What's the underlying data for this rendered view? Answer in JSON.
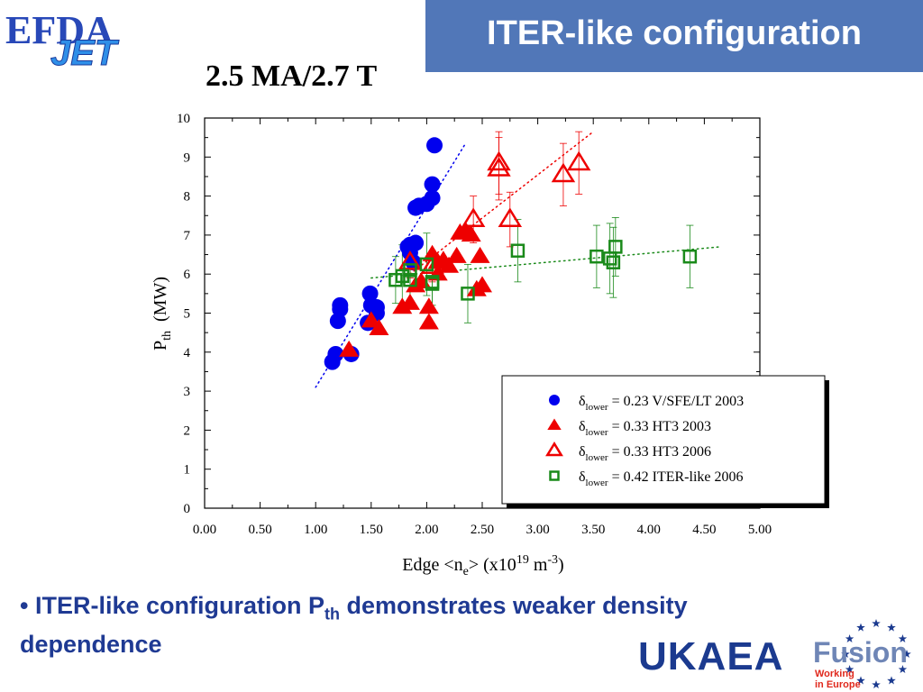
{
  "header": {
    "title": "ITER-like configuration",
    "logo_text_1": "EFDA",
    "logo_text_2": "JET"
  },
  "chart_title": "2.5 MA/2.7 T",
  "bullet": {
    "marker": "•",
    "text_1": "ITER-like configuration P",
    "subscript": "th",
    "text_2": " demonstrates weaker density dependence"
  },
  "footer": {
    "ukaea": "UKAEA",
    "fusion": "Fusion",
    "fusion_sub_1": "Working",
    "fusion_sub_2": "in Europe"
  },
  "colors": {
    "title_bg": "#5177b8",
    "blue": "#0000ee",
    "red": "#ee0000",
    "green": "#1a8a1a",
    "bullet_text": "#1f3a93"
  },
  "chart_data": {
    "type": "scatter",
    "xlabel": "Edge <ne> (x10^19 m^-3)",
    "xlabel_parts": {
      "a": "Edge <n",
      "b": "e",
      "c": "> (x10",
      "d": "19",
      "e": " m",
      "f": "-3",
      "g": ")"
    },
    "ylabel": "Pth (MW)",
    "ylabel_parts": {
      "a": "P",
      "b": "th",
      "c": "(MW)"
    },
    "xlim": [
      0,
      5
    ],
    "ylim": [
      0,
      10
    ],
    "xticks": [
      "0.00",
      "0.50",
      "1.00",
      "1.50",
      "2.00",
      "2.50",
      "3.00",
      "3.50",
      "4.00",
      "4.50",
      "5.00"
    ],
    "yticks": [
      "0",
      "1",
      "2",
      "3",
      "4",
      "5",
      "6",
      "7",
      "8",
      "9",
      "10"
    ],
    "legend_position": "bottom-right",
    "series": [
      {
        "name": "δlower = 0.23 V/SFE/LT 2003",
        "legend": {
          "a": "δ",
          "b": "lower",
          "c": " = 0.23 V/SFE/LT 2003"
        },
        "marker": "filled-circle",
        "color": "#0000ee",
        "points": [
          [
            1.15,
            3.75
          ],
          [
            1.18,
            3.95
          ],
          [
            1.32,
            3.95
          ],
          [
            1.2,
            4.8
          ],
          [
            1.22,
            5.1
          ],
          [
            1.22,
            5.2
          ],
          [
            1.47,
            4.75
          ],
          [
            1.5,
            5.2
          ],
          [
            1.49,
            5.5
          ],
          [
            1.55,
            5.15
          ],
          [
            1.55,
            5.0
          ],
          [
            1.83,
            6.7
          ],
          [
            1.85,
            6.75
          ],
          [
            1.9,
            6.8
          ],
          [
            1.85,
            6.55
          ],
          [
            1.88,
            6.3
          ],
          [
            1.9,
            7.7
          ],
          [
            1.93,
            7.75
          ],
          [
            2.0,
            7.8
          ],
          [
            2.05,
            7.95
          ],
          [
            2.05,
            8.3
          ],
          [
            2.07,
            9.3
          ]
        ],
        "trend": [
          [
            1.0,
            3.1
          ],
          [
            2.35,
            9.35
          ]
        ]
      },
      {
        "name": "δlower = 0.33 HT3 2003",
        "legend": {
          "a": "δ",
          "b": "lower",
          "c": " = 0.33 HT3 2003"
        },
        "marker": "filled-triangle",
        "color": "#ee0000",
        "points": [
          [
            1.3,
            4.05
          ],
          [
            1.5,
            4.8
          ],
          [
            1.57,
            4.6
          ],
          [
            1.78,
            5.15
          ],
          [
            1.85,
            5.25
          ],
          [
            1.9,
            5.7
          ],
          [
            1.95,
            5.8
          ],
          [
            2.02,
            5.15
          ],
          [
            2.02,
            4.75
          ],
          [
            2.05,
            6.5
          ],
          [
            2.1,
            6.3
          ],
          [
            2.1,
            6.0
          ],
          [
            2.15,
            6.35
          ],
          [
            2.2,
            6.2
          ],
          [
            2.27,
            6.45
          ],
          [
            2.3,
            7.05
          ],
          [
            2.35,
            7.1
          ],
          [
            2.4,
            7.0
          ],
          [
            2.45,
            5.6
          ],
          [
            2.48,
            6.45
          ],
          [
            2.5,
            5.7
          ]
        ]
      },
      {
        "name": "δlower = 0.33 HT3 2006",
        "legend": {
          "a": "δ",
          "b": "lower",
          "c": " = 0.33 HT3 2006"
        },
        "marker": "open-triangle",
        "color": "#ee0000",
        "points": [
          [
            1.85,
            6.3
          ],
          [
            2.05,
            6.2
          ],
          [
            2.42,
            7.4
          ],
          [
            2.75,
            7.4
          ],
          [
            2.65,
            8.7
          ],
          [
            2.65,
            8.85
          ],
          [
            3.23,
            8.55
          ],
          [
            3.37,
            8.85
          ]
        ],
        "errors": [
          0.4,
          0.4,
          0.6,
          0.7,
          0.8,
          0.8,
          0.8,
          0.8
        ],
        "trend": [
          [
            1.85,
            6.0
          ],
          [
            3.5,
            9.65
          ]
        ]
      },
      {
        "name": "δlower = 0.42 ITER-like 2006",
        "legend": {
          "a": "δ",
          "b": "lower",
          "c": " = 0.42 ITER-like 2006"
        },
        "marker": "open-square",
        "color": "#1a8a1a",
        "points": [
          [
            1.72,
            5.85
          ],
          [
            1.78,
            5.95
          ],
          [
            1.85,
            5.85
          ],
          [
            1.85,
            6.1
          ],
          [
            2.0,
            6.25
          ],
          [
            2.05,
            5.75
          ],
          [
            2.05,
            5.8
          ],
          [
            2.37,
            5.5
          ],
          [
            2.82,
            6.6
          ],
          [
            3.53,
            6.45
          ],
          [
            3.65,
            6.4
          ],
          [
            3.68,
            6.3
          ],
          [
            3.7,
            6.7
          ],
          [
            4.37,
            6.45
          ]
        ],
        "errors": [
          0.6,
          0.8,
          0.6,
          0.8,
          0.8,
          0.7,
          0.6,
          0.75,
          0.8,
          0.8,
          0.9,
          0.9,
          0.75,
          0.8
        ],
        "trend": [
          [
            1.5,
            5.9
          ],
          [
            4.65,
            6.7
          ]
        ]
      }
    ]
  }
}
